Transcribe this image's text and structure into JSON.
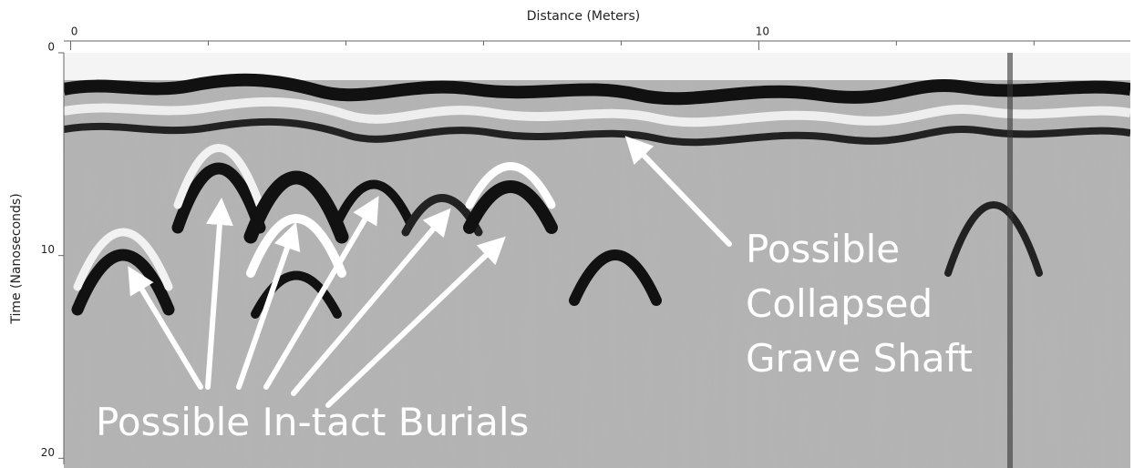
{
  "chart_data": {
    "type": "radargram",
    "xlabel": "Distance (Meters)",
    "ylabel": "Time (Nanoseconds)",
    "xlim": [
      -0.1,
      15.4
    ],
    "xticks": [
      0,
      10
    ],
    "x_minor_ticks": [
      2,
      4,
      6,
      8,
      12,
      14
    ],
    "ylim": [
      0,
      20.3
    ],
    "yticks": [
      0,
      10,
      20
    ],
    "y_direction": "down",
    "annotations": [
      "Possible In-tact Burials",
      "Possible",
      "Collapsed",
      "Grave Shaft"
    ]
  }
}
